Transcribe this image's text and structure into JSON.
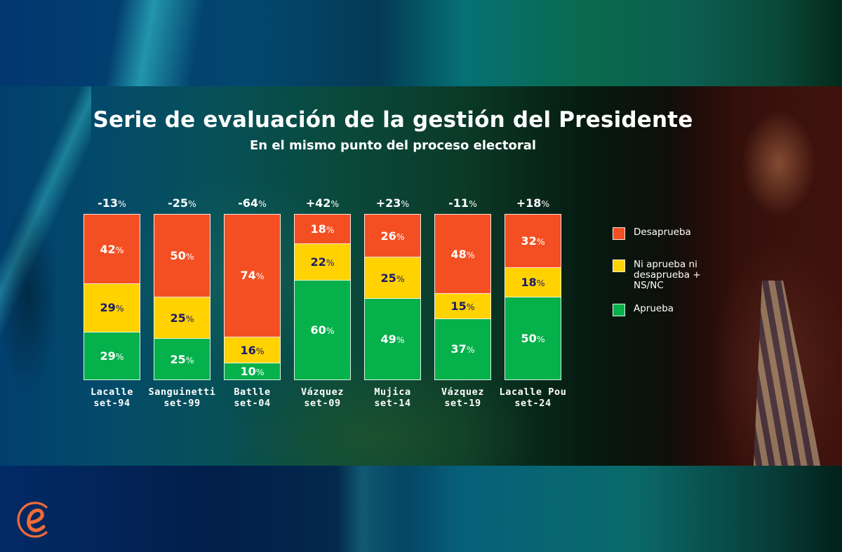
{
  "title": "Serie de evaluación de la gestión del Presidente",
  "subtitle": "En el mismo punto del proceso electoral",
  "logo": {
    "icon": "e-logo-icon",
    "color": "#f26b38"
  },
  "colors": {
    "desaprueba": "#f44f22",
    "ni": "#ffd200",
    "aprueba": "#05b14b",
    "ni_text": "#1c1a6a"
  },
  "legend": [
    {
      "key": "desaprueba",
      "label": "Desaprueba"
    },
    {
      "key": "ni",
      "label": "Ni aprueba ni\ndesaprueba +\nNS/NC"
    },
    {
      "key": "aprueba",
      "label": "Aprueba"
    }
  ],
  "chart_data": {
    "type": "bar",
    "stacked": true,
    "title": "Serie de evaluación de la gestión del Presidente",
    "subtitle": "En el mismo punto del proceso electoral",
    "xlabel": "",
    "ylabel": "",
    "ylim": [
      0,
      100
    ],
    "unit": "%",
    "grid": false,
    "legend_position": "right",
    "categories": [
      {
        "name": "Lacalle",
        "date": "set-94"
      },
      {
        "name": "Sanguinetti",
        "date": "set-99"
      },
      {
        "name": "Batlle",
        "date": "set-04"
      },
      {
        "name": "Vázquez",
        "date": "set-09"
      },
      {
        "name": "Mujica",
        "date": "set-14"
      },
      {
        "name": "Vázquez",
        "date": "set-19"
      },
      {
        "name": "Lacalle Pou",
        "date": "set-24"
      }
    ],
    "series": [
      {
        "name": "Aprueba",
        "key": "aprueba",
        "values": [
          29,
          25,
          10,
          60,
          49,
          37,
          50
        ]
      },
      {
        "name": "Ni aprueba ni desaprueba + NS/NC",
        "key": "ni",
        "values": [
          29,
          25,
          16,
          22,
          25,
          15,
          18
        ]
      },
      {
        "name": "Desaprueba",
        "key": "desaprueba",
        "values": [
          42,
          50,
          74,
          18,
          26,
          48,
          32
        ]
      }
    ],
    "net_labels": [
      "-13",
      "-25",
      "-64",
      "+42",
      "+23",
      "-11",
      "+18"
    ]
  }
}
